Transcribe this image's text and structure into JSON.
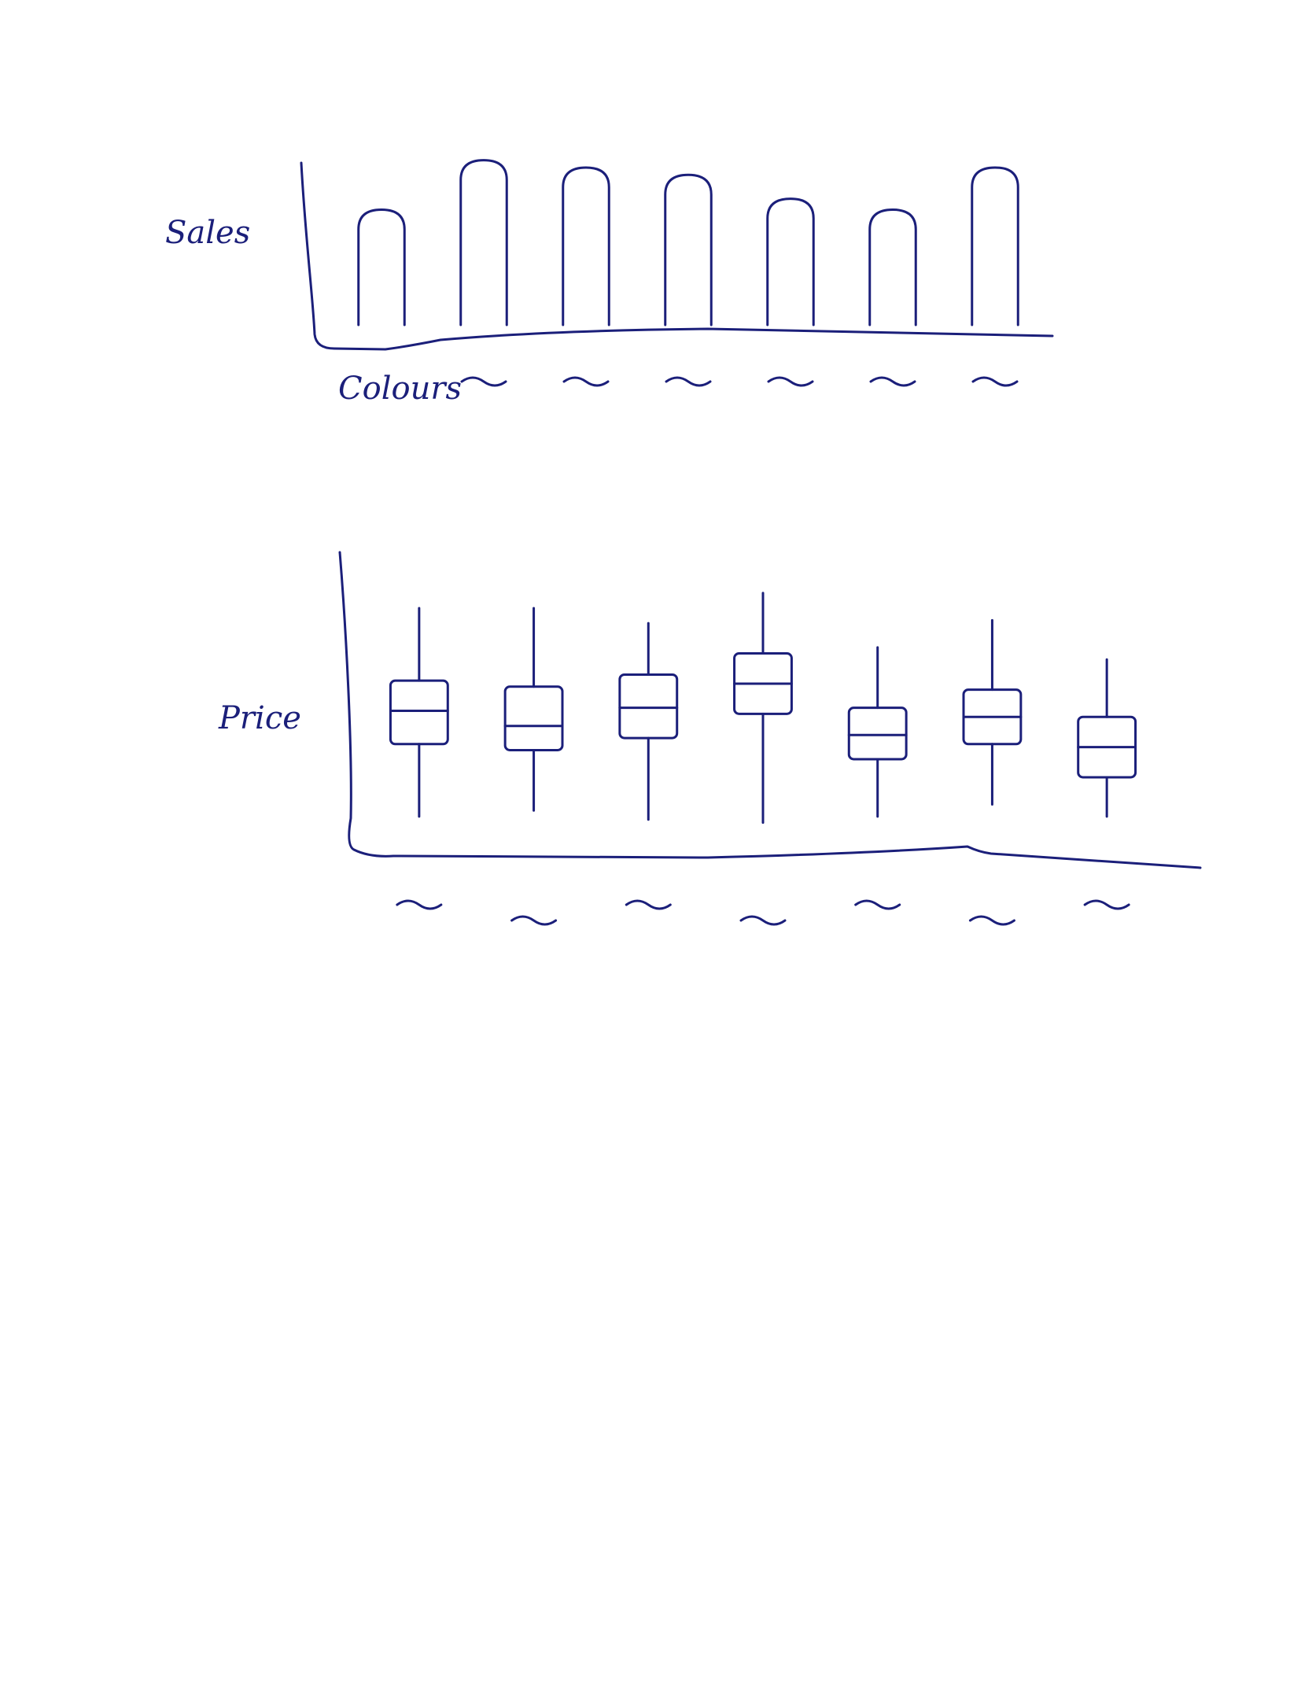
{
  "chart_data": [
    {
      "type": "bar",
      "y_label": "Sales",
      "x_label": "Colours",
      "categories": [
        null,
        null,
        null,
        null,
        null,
        null,
        null
      ],
      "values": [
        68,
        95,
        91,
        87,
        74,
        68,
        91
      ],
      "color": "#1b1f7a",
      "ylim": [
        0,
        100
      ]
    },
    {
      "type": "box",
      "y_label": "Price",
      "categories": [
        null,
        null,
        null,
        null,
        null,
        null,
        null
      ],
      "max": [
        81,
        81,
        76,
        86,
        68,
        77,
        64
      ],
      "q3": [
        57,
        55,
        59,
        66,
        48,
        54,
        45
      ],
      "median": [
        47,
        42,
        48,
        56,
        39,
        45,
        35
      ],
      "q1": [
        36,
        34,
        38,
        46,
        31,
        36,
        25
      ],
      "min": [
        12,
        14,
        11,
        10,
        12,
        16,
        12
      ],
      "color": "#1b1f7a",
      "ylim": [
        0,
        100
      ]
    }
  ]
}
